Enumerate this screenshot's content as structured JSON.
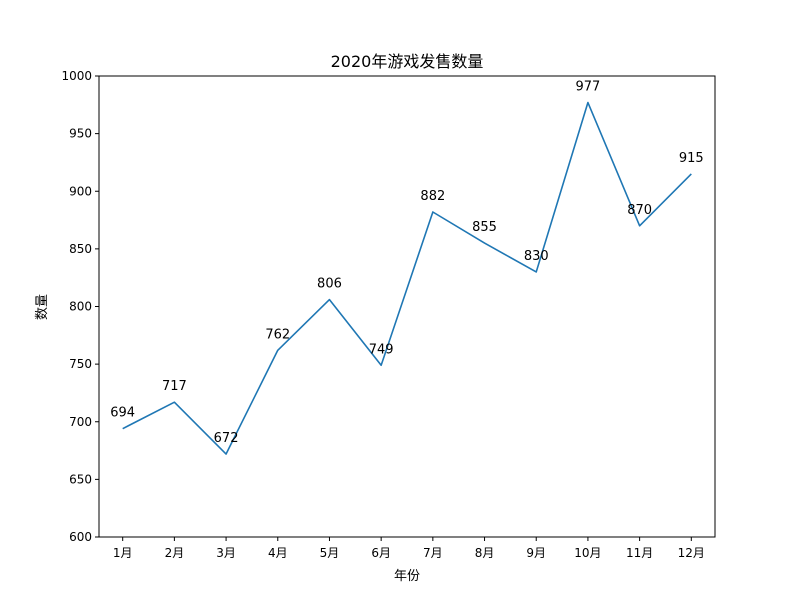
{
  "chart_data": {
    "type": "line",
    "title": "2020年游戏发售数量",
    "xlabel": "年份",
    "ylabel": "数量",
    "categories": [
      "1月",
      "2月",
      "3月",
      "4月",
      "5月",
      "6月",
      "7月",
      "8月",
      "9月",
      "10月",
      "11月",
      "12月"
    ],
    "series": [
      {
        "values": [
          694,
          717,
          672,
          762,
          806,
          749,
          882,
          855,
          830,
          977,
          870,
          915
        ]
      }
    ],
    "data_labels": [
      "694",
      "717",
      "672",
      "762",
      "806",
      "749",
      "882",
      "855",
      "830",
      "977",
      "870",
      "915"
    ],
    "ylim": [
      600,
      1000
    ],
    "yticks": [
      600,
      650,
      700,
      750,
      800,
      850,
      900,
      950,
      1000
    ],
    "ytick_labels": [
      "600",
      "650",
      "700",
      "750",
      "800",
      "850",
      "900",
      "950",
      "1000"
    ],
    "grid": false,
    "legend": "none",
    "line_color": "#1f77b4"
  }
}
